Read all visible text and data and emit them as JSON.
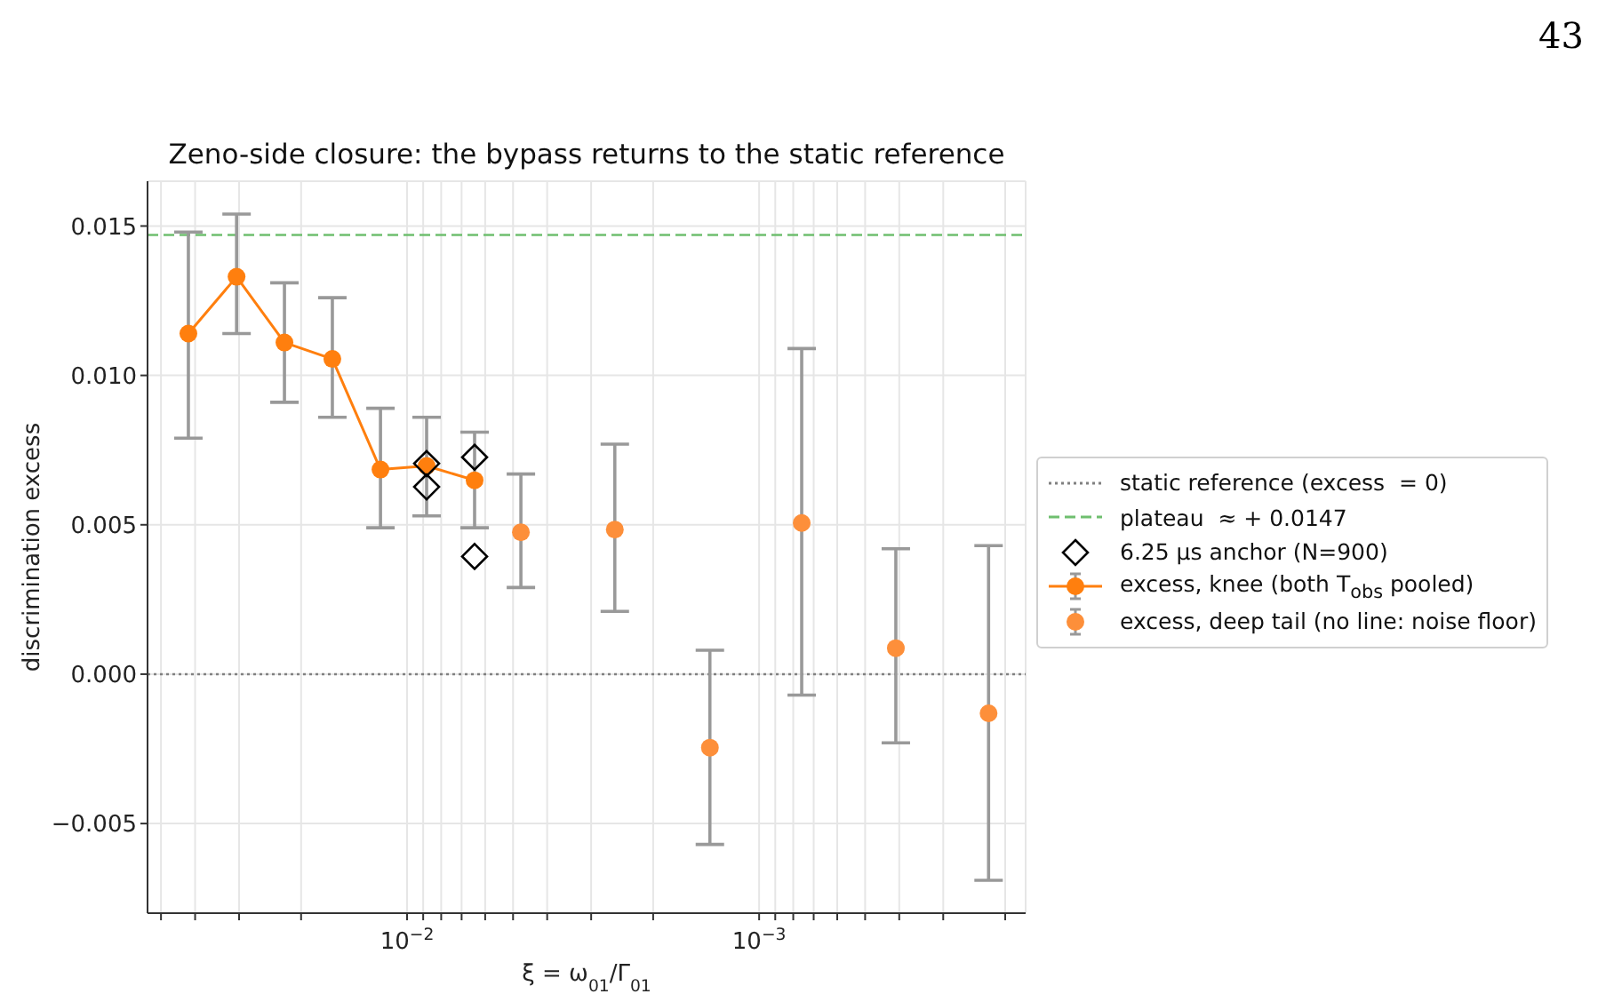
{
  "chart_data": {
    "type": "scatter",
    "title": "Zeno-side closure: the bypass returns to the static reference",
    "xlabel": "ξ = ω$_{01}$/Γ$_{01}$",
    "ylabel": "discrimination excess",
    "annotations": [
      "43"
    ],
    "log": "x",
    "grid": true,
    "legend": "right",
    "xlim": [
      0.0546,
      0.000175
    ],
    "xticks": [
      {
        "value": 0.05,
        "label": null
      },
      {
        "value": 0.04,
        "label": null
      },
      {
        "value": 0.03,
        "label": null
      },
      {
        "value": 0.02,
        "label": null
      },
      {
        "value": 0.01,
        "label": "10$^{−2}$"
      },
      {
        "value": 0.009,
        "label": null
      },
      {
        "value": 0.008,
        "label": null
      },
      {
        "value": 0.007,
        "label": null
      },
      {
        "value": 0.006,
        "label": null
      },
      {
        "value": 0.005,
        "label": null
      },
      {
        "value": 0.004,
        "label": null
      },
      {
        "value": 0.003,
        "label": null
      },
      {
        "value": 0.002,
        "label": null
      },
      {
        "value": 0.001,
        "label": "10$^{−3}$"
      },
      {
        "value": 0.0009,
        "label": null
      },
      {
        "value": 0.0008,
        "label": null
      },
      {
        "value": 0.0007,
        "label": null
      },
      {
        "value": 0.0006,
        "label": null
      },
      {
        "value": 0.0005,
        "label": null
      },
      {
        "value": 0.0004,
        "label": null
      },
      {
        "value": 0.0003,
        "label": null
      },
      {
        "value": 0.0002,
        "label": null
      }
    ],
    "ylim": [
      -0.008,
      0.0165
    ],
    "yticks": [
      {
        "value": -0.005,
        "label": "−0.005"
      },
      {
        "value": 0,
        "label": "0.000"
      },
      {
        "value": 0.005,
        "label": "0.005"
      },
      {
        "value": 0.01,
        "label": "0.010"
      },
      {
        "value": 0.015,
        "label": "0.015"
      }
    ],
    "ref_lines": [
      {
        "axis": "y",
        "value": 0,
        "label": "static reference (excess  = 0)",
        "color": "#808080",
        "line_style": "dotted"
      },
      {
        "axis": "y",
        "value": 0.0147,
        "label": "plateau  ≈ + 0.0147",
        "color": "#6fbf6f",
        "line_style": "dashed"
      }
    ],
    "series": [
      {
        "name": "6.25 µs anchor (N=900)",
        "marker": "diamond",
        "color": "#000000",
        "x": [
          0.0088,
          0.0088,
          0.00643,
          0.00643
        ],
        "values": [
          0.00705,
          0.00627,
          0.00726,
          0.00394
        ]
      },
      {
        "name": "excess, knee (both T$_{obs}$ pooled)",
        "type": "line",
        "marker": "circle",
        "color": "#ff7f0e",
        "x": [
          0.0418,
          0.0305,
          0.0223,
          0.0163,
          0.0119,
          0.0088,
          0.00643
        ],
        "values": [
          0.0114,
          0.0133,
          0.0111,
          0.01055,
          0.00685,
          0.00697,
          0.00649
        ],
        "errors": [
          [
            0.0079,
            0.0148
          ],
          [
            0.0114,
            0.0154
          ],
          [
            0.0091,
            0.0131
          ],
          [
            0.0086,
            0.0126
          ],
          [
            0.0049,
            0.0089
          ],
          [
            0.0053,
            0.0086
          ],
          [
            0.0049,
            0.0081
          ]
        ]
      },
      {
        "name": "excess, deep tail (no line: noise floor)",
        "marker": "circle",
        "color": "#fd8f3a",
        "x": [
          0.00475,
          0.00257,
          0.00138,
          0.000757,
          0.000409,
          0.000223
        ],
        "values": [
          0.00475,
          0.00484,
          -0.00246,
          0.00506,
          0.00087,
          -0.00131
        ],
        "errors": [
          [
            0.0029,
            0.0067
          ],
          [
            0.0021,
            0.0077
          ],
          [
            -0.0057,
            0.0008
          ],
          [
            -0.0007,
            0.0109
          ],
          [
            -0.0023,
            0.0042
          ],
          [
            -0.0069,
            0.0043
          ]
        ]
      }
    ]
  }
}
